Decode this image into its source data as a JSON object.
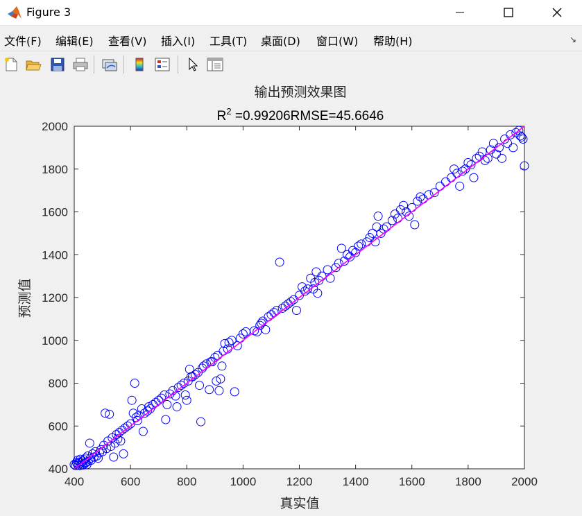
{
  "window": {
    "title": "Figure 3",
    "controls": {
      "minimize_icon": "minimize-icon",
      "maximize_icon": "maximize-icon",
      "close_icon": "close-icon"
    }
  },
  "menu": {
    "items": [
      {
        "label": "文件(F)"
      },
      {
        "label": "编辑(E)"
      },
      {
        "label": "查看(V)"
      },
      {
        "label": "插入(I)"
      },
      {
        "label": "工具(T)"
      },
      {
        "label": "桌面(D)"
      },
      {
        "label": "窗口(W)"
      },
      {
        "label": "帮助(H)"
      }
    ],
    "overflow_arrow": "↘"
  },
  "toolbar": {
    "tools": [
      {
        "name": "new-figure",
        "icon": "new-file-icon"
      },
      {
        "name": "open-file",
        "icon": "folder-open-icon"
      },
      {
        "name": "save",
        "icon": "save-icon"
      },
      {
        "name": "print",
        "icon": "printer-icon"
      },
      {
        "name": "link-plot",
        "icon": "link-plot-icon"
      },
      {
        "name": "insert-colorbar",
        "icon": "colorbar-icon"
      },
      {
        "name": "insert-legend",
        "icon": "legend-icon"
      },
      {
        "name": "edit-plot",
        "icon": "pointer-arrow-icon"
      },
      {
        "name": "property-inspector",
        "icon": "property-inspector-icon"
      }
    ]
  },
  "colors": {
    "marker": "#0000ff",
    "fit_line": "#ff00ff",
    "axes_bg": "#ffffff",
    "figure_bg": "#f0f0f0"
  },
  "chart_data": {
    "type": "scatter",
    "title": "输出预测效果图",
    "subtitle_r2_base": "R",
    "subtitle_r2_exp": "2",
    "subtitle_rest": " =0.99206RMSE=45.6646",
    "xlabel": "真实值",
    "ylabel": "预测值",
    "xlim": [
      400,
      2000
    ],
    "ylim": [
      400,
      2000
    ],
    "xticks": [
      400,
      600,
      800,
      1000,
      1200,
      1400,
      1600,
      1800,
      2000
    ],
    "yticks": [
      400,
      600,
      800,
      1000,
      1200,
      1400,
      1600,
      1800,
      2000
    ],
    "grid": false,
    "legend": "none",
    "fit_line": {
      "x": [
        400,
        2000
      ],
      "y": [
        400,
        2000
      ]
    },
    "series": [
      {
        "marker": "open-circle",
        "points": [
          [
            400,
            420
          ],
          [
            405,
            415
          ],
          [
            408,
            430
          ],
          [
            410,
            425
          ],
          [
            412,
            440
          ],
          [
            415,
            418
          ],
          [
            418,
            432
          ],
          [
            420,
            415
          ],
          [
            422,
            445
          ],
          [
            425,
            428
          ],
          [
            428,
            420
          ],
          [
            430,
            436
          ],
          [
            432,
            418
          ],
          [
            435,
            442
          ],
          [
            438,
            425
          ],
          [
            440,
            450
          ],
          [
            442,
            430
          ],
          [
            445,
            420
          ],
          [
            448,
            460
          ],
          [
            450,
            435
          ],
          [
            455,
            520
          ],
          [
            458,
            450
          ],
          [
            460,
            440
          ],
          [
            465,
            470
          ],
          [
            470,
            455
          ],
          [
            475,
            480
          ],
          [
            480,
            460
          ],
          [
            485,
            450
          ],
          [
            490,
            475
          ],
          [
            495,
            490
          ],
          [
            500,
            480
          ],
          [
            505,
            510
          ],
          [
            510,
            660
          ],
          [
            515,
            495
          ],
          [
            520,
            530
          ],
          [
            525,
            655
          ],
          [
            530,
            505
          ],
          [
            535,
            545
          ],
          [
            540,
            455
          ],
          [
            545,
            520
          ],
          [
            550,
            560
          ],
          [
            555,
            540
          ],
          [
            560,
            570
          ],
          [
            565,
            530
          ],
          [
            570,
            580
          ],
          [
            575,
            470
          ],
          [
            580,
            590
          ],
          [
            590,
            600
          ],
          [
            600,
            610
          ],
          [
            605,
            720
          ],
          [
            610,
            660
          ],
          [
            615,
            800
          ],
          [
            620,
            640
          ],
          [
            625,
            625
          ],
          [
            630,
            650
          ],
          [
            640,
            680
          ],
          [
            645,
            575
          ],
          [
            650,
            660
          ],
          [
            660,
            670
          ],
          [
            665,
            690
          ],
          [
            670,
            680
          ],
          [
            680,
            700
          ],
          [
            690,
            710
          ],
          [
            700,
            720
          ],
          [
            710,
            730
          ],
          [
            720,
            745
          ],
          [
            725,
            630
          ],
          [
            730,
            700
          ],
          [
            740,
            750
          ],
          [
            750,
            765
          ],
          [
            760,
            740
          ],
          [
            765,
            690
          ],
          [
            770,
            780
          ],
          [
            780,
            790
          ],
          [
            790,
            800
          ],
          [
            795,
            745
          ],
          [
            800,
            720
          ],
          [
            805,
            810
          ],
          [
            810,
            865
          ],
          [
            815,
            830
          ],
          [
            820,
            830
          ],
          [
            830,
            840
          ],
          [
            840,
            850
          ],
          [
            845,
            790
          ],
          [
            850,
            620
          ],
          [
            855,
            870
          ],
          [
            860,
            880
          ],
          [
            870,
            890
          ],
          [
            880,
            770
          ],
          [
            885,
            900
          ],
          [
            890,
            900
          ],
          [
            900,
            920
          ],
          [
            905,
            810
          ],
          [
            910,
            930
          ],
          [
            915,
            765
          ],
          [
            920,
            820
          ],
          [
            925,
            880
          ],
          [
            930,
            950
          ],
          [
            935,
            985
          ],
          [
            945,
            960
          ],
          [
            950,
            990
          ],
          [
            960,
            1000
          ],
          [
            970,
            760
          ],
          [
            980,
            975
          ],
          [
            990,
            1010
          ],
          [
            1000,
            1030
          ],
          [
            1010,
            1040
          ],
          [
            1040,
            1045
          ],
          [
            1050,
            1040
          ],
          [
            1060,
            1070
          ],
          [
            1065,
            1080
          ],
          [
            1070,
            1090
          ],
          [
            1080,
            1050
          ],
          [
            1090,
            1110
          ],
          [
            1100,
            1120
          ],
          [
            1110,
            1130
          ],
          [
            1120,
            1140
          ],
          [
            1130,
            1365
          ],
          [
            1140,
            1150
          ],
          [
            1150,
            1160
          ],
          [
            1160,
            1170
          ],
          [
            1170,
            1180
          ],
          [
            1180,
            1190
          ],
          [
            1190,
            1140
          ],
          [
            1200,
            1210
          ],
          [
            1210,
            1250
          ],
          [
            1220,
            1230
          ],
          [
            1230,
            1240
          ],
          [
            1240,
            1290
          ],
          [
            1250,
            1240
          ],
          [
            1255,
            1270
          ],
          [
            1260,
            1320
          ],
          [
            1265,
            1220
          ],
          [
            1270,
            1280
          ],
          [
            1280,
            1300
          ],
          [
            1300,
            1330
          ],
          [
            1310,
            1290
          ],
          [
            1330,
            1340
          ],
          [
            1340,
            1360
          ],
          [
            1350,
            1430
          ],
          [
            1360,
            1370
          ],
          [
            1370,
            1400
          ],
          [
            1380,
            1390
          ],
          [
            1390,
            1420
          ],
          [
            1400,
            1410
          ],
          [
            1410,
            1440
          ],
          [
            1420,
            1450
          ],
          [
            1440,
            1460
          ],
          [
            1450,
            1480
          ],
          [
            1460,
            1500
          ],
          [
            1470,
            1460
          ],
          [
            1475,
            1530
          ],
          [
            1480,
            1580
          ],
          [
            1490,
            1500
          ],
          [
            1500,
            1520
          ],
          [
            1510,
            1530
          ],
          [
            1530,
            1560
          ],
          [
            1540,
            1590
          ],
          [
            1550,
            1570
          ],
          [
            1560,
            1610
          ],
          [
            1570,
            1630
          ],
          [
            1580,
            1600
          ],
          [
            1590,
            1580
          ],
          [
            1600,
            1620
          ],
          [
            1610,
            1540
          ],
          [
            1620,
            1650
          ],
          [
            1630,
            1670
          ],
          [
            1640,
            1660
          ],
          [
            1660,
            1680
          ],
          [
            1680,
            1690
          ],
          [
            1700,
            1720
          ],
          [
            1720,
            1740
          ],
          [
            1740,
            1760
          ],
          [
            1750,
            1800
          ],
          [
            1760,
            1780
          ],
          [
            1770,
            1720
          ],
          [
            1780,
            1790
          ],
          [
            1790,
            1800
          ],
          [
            1800,
            1830
          ],
          [
            1810,
            1820
          ],
          [
            1820,
            1760
          ],
          [
            1830,
            1850
          ],
          [
            1840,
            1860
          ],
          [
            1850,
            1880
          ],
          [
            1860,
            1840
          ],
          [
            1870,
            1850
          ],
          [
            1880,
            1890
          ],
          [
            1890,
            1920
          ],
          [
            1900,
            1870
          ],
          [
            1910,
            1900
          ],
          [
            1920,
            1850
          ],
          [
            1930,
            1940
          ],
          [
            1940,
            1920
          ],
          [
            1950,
            1960
          ],
          [
            1960,
            1900
          ],
          [
            1970,
            1970
          ],
          [
            1980,
            1980
          ],
          [
            1985,
            1955
          ],
          [
            1990,
            1950
          ],
          [
            1995,
            1940
          ],
          [
            2000,
            1815
          ]
        ]
      }
    ]
  }
}
